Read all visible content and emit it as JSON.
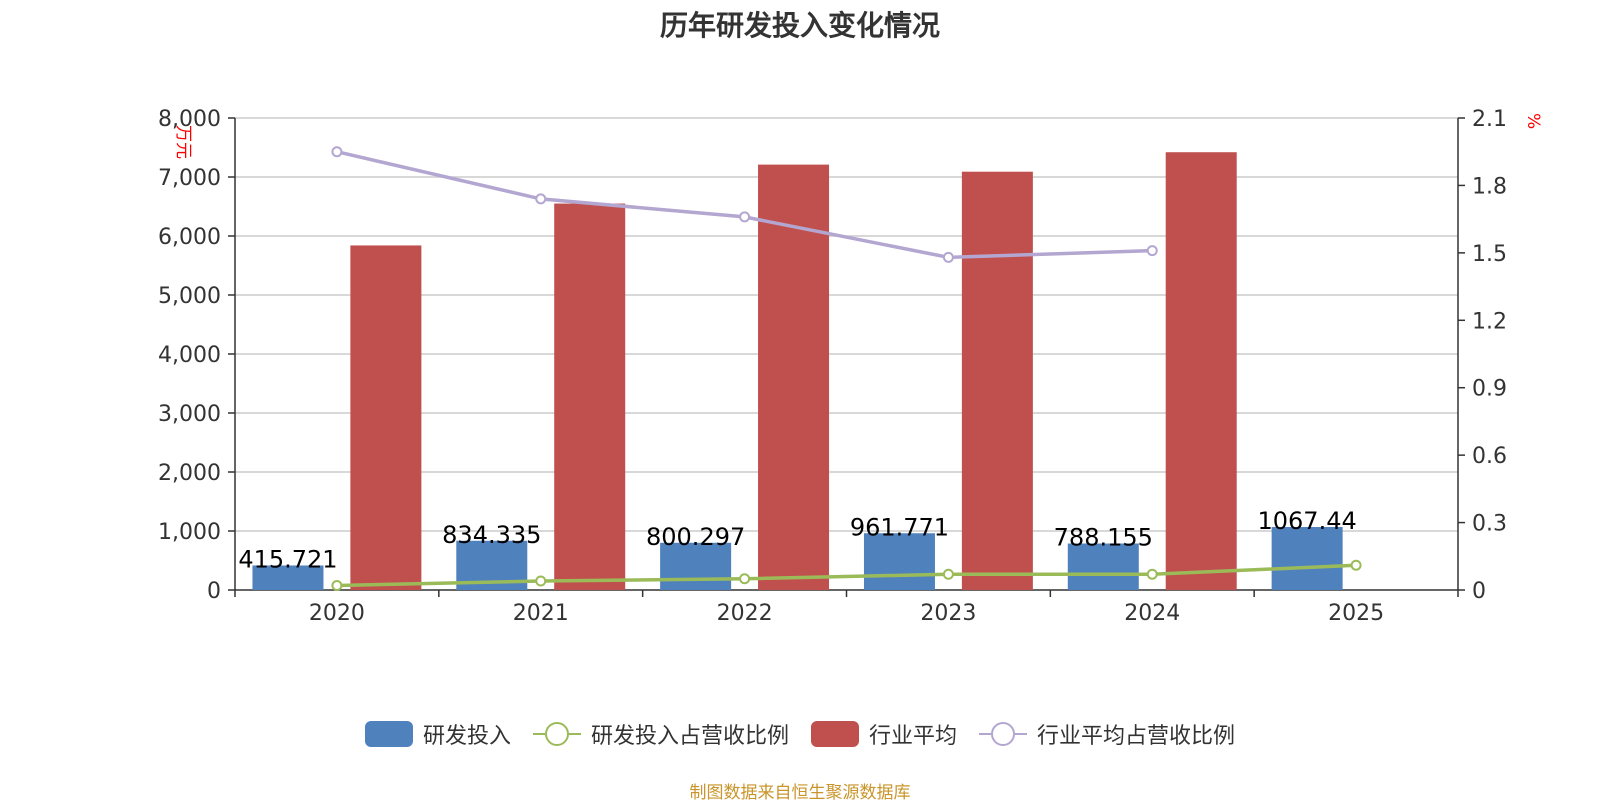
{
  "chart_data": {
    "type": "bar",
    "title": "历年研发投入变化情况",
    "categories": [
      "2020",
      "2021",
      "2022",
      "2023",
      "2024",
      "2025"
    ],
    "y_left": {
      "label": "万元",
      "min": 0,
      "max": 8000,
      "ticks": [
        0,
        1000,
        2000,
        3000,
        4000,
        5000,
        6000,
        7000,
        8000
      ],
      "tick_labels": [
        "0",
        "1,000",
        "2,000",
        "3,000",
        "4,000",
        "5,000",
        "6,000",
        "7,000",
        "8,000"
      ]
    },
    "y_right": {
      "label": "%",
      "min": 0,
      "max": 2.1,
      "ticks": [
        0,
        0.3,
        0.6,
        0.9,
        1.2,
        1.5,
        1.8,
        2.1
      ],
      "tick_labels": [
        "0",
        "0.3",
        "0.6",
        "0.9",
        "1.2",
        "1.5",
        "1.8",
        "2.1"
      ]
    },
    "grid": true,
    "legend_position": "bottom",
    "series": [
      {
        "name": "研发投入",
        "type": "bar",
        "axis": "left",
        "color": "#4f81bd",
        "values": [
          415.721,
          834.335,
          800.297,
          961.771,
          788.155,
          1067.44
        ],
        "data_labels": [
          "415.721",
          "834.335",
          "800.297",
          "961.771",
          "788.155",
          "1067.44"
        ]
      },
      {
        "name": "研发投入占营收比例",
        "type": "line",
        "axis": "right",
        "color": "#9bbb59",
        "values": [
          0.02,
          0.04,
          0.05,
          0.07,
          0.07,
          0.11
        ]
      },
      {
        "name": "行业平均",
        "type": "bar",
        "axis": "left",
        "color": "#c0504d",
        "values": [
          5840,
          6550,
          7210,
          7090,
          7420,
          null
        ]
      },
      {
        "name": "行业平均占营收比例",
        "type": "line",
        "axis": "right",
        "color": "#b3a6d1",
        "values": [
          1.95,
          1.74,
          1.66,
          1.48,
          1.51,
          null
        ]
      }
    ]
  },
  "source_note": "制图数据来自恒生聚源数据库"
}
